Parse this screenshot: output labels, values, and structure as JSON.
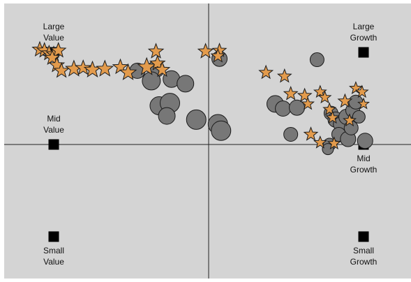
{
  "chart_data": {
    "type": "scatter",
    "title": "",
    "xlabel": "",
    "ylabel": "",
    "xlim": [
      -1,
      1
    ],
    "ylim": [
      -1,
      1
    ],
    "grid": false,
    "colors": {
      "background": "#d4d4d4",
      "axis": "#222222",
      "marker_anchor": "#000000",
      "star_fill": "#e39b4c",
      "circle_fill": "#777777",
      "outline": "#1a1a1a"
    },
    "anchors": [
      {
        "label": [
          "Large",
          "Value"
        ],
        "x": -1,
        "y": 1,
        "label_pos": "above"
      },
      {
        "label": [
          "Large",
          "Growth"
        ],
        "x": 1,
        "y": 1,
        "label_pos": "above"
      },
      {
        "label": [
          "Mid",
          "Value"
        ],
        "x": -1,
        "y": 0,
        "label_pos": "above"
      },
      {
        "label": [
          "Mid",
          "Growth"
        ],
        "x": 1,
        "y": 0,
        "label_pos": "below"
      },
      {
        "label": [
          "Small",
          "Value"
        ],
        "x": -1,
        "y": -1,
        "label_pos": "below"
      },
      {
        "label": [
          "Small",
          "Growth"
        ],
        "x": 1,
        "y": -1,
        "label_pos": "below"
      }
    ],
    "series": [
      {
        "marker": "circle",
        "points": [
          {
            "x": -0.46,
            "y": 0.8,
            "s": 11
          },
          {
            "x": -0.34,
            "y": 0.82,
            "s": 12
          },
          {
            "x": -0.37,
            "y": 0.69,
            "s": 13
          },
          {
            "x": -0.24,
            "y": 0.71,
            "s": 12
          },
          {
            "x": -0.15,
            "y": 0.66,
            "s": 12
          },
          {
            "x": -0.32,
            "y": 0.42,
            "s": 13
          },
          {
            "x": -0.25,
            "y": 0.45,
            "s": 14
          },
          {
            "x": -0.27,
            "y": 0.31,
            "s": 12
          },
          {
            "x": -0.08,
            "y": 0.27,
            "s": 14
          },
          {
            "x": 0.06,
            "y": 0.22,
            "s": 14
          },
          {
            "x": 0.08,
            "y": 0.15,
            "s": 14
          },
          {
            "x": 0.07,
            "y": 0.93,
            "s": 11
          },
          {
            "x": 0.7,
            "y": 0.92,
            "s": 10
          },
          {
            "x": 0.43,
            "y": 0.44,
            "s": 12
          },
          {
            "x": 0.48,
            "y": 0.39,
            "s": 11
          },
          {
            "x": 0.57,
            "y": 0.4,
            "s": 11
          },
          {
            "x": 0.53,
            "y": 0.11,
            "s": 10
          },
          {
            "x": 0.79,
            "y": 0.34,
            "s": 10
          },
          {
            "x": 0.82,
            "y": 0.27,
            "s": 11
          },
          {
            "x": 0.85,
            "y": 0.22,
            "s": 10
          },
          {
            "x": 0.89,
            "y": 0.3,
            "s": 11
          },
          {
            "x": 0.93,
            "y": 0.37,
            "s": 10
          },
          {
            "x": 0.95,
            "y": 0.46,
            "s": 10
          },
          {
            "x": 0.84,
            "y": 0.11,
            "s": 10
          },
          {
            "x": 0.9,
            "y": 0.06,
            "s": 11
          },
          {
            "x": 1.01,
            "y": 0.04,
            "s": 11
          },
          {
            "x": 0.78,
            "y": 0.0,
            "s": 9
          },
          {
            "x": 0.77,
            "y": -0.05,
            "s": 8
          },
          {
            "x": 0.92,
            "y": 0.18,
            "s": 10
          },
          {
            "x": 0.97,
            "y": 0.3,
            "s": 9
          }
        ]
      },
      {
        "marker": "star",
        "points": [
          {
            "x": -1.09,
            "y": 1.03,
            "s": 11
          },
          {
            "x": -1.06,
            "y": 1.02,
            "s": 11
          },
          {
            "x": -1.03,
            "y": 0.99,
            "s": 11
          },
          {
            "x": -1.0,
            "y": 0.98,
            "s": 11
          },
          {
            "x": -0.97,
            "y": 1.02,
            "s": 11
          },
          {
            "x": -1.01,
            "y": 0.94,
            "s": 11
          },
          {
            "x": -0.98,
            "y": 0.86,
            "s": 11
          },
          {
            "x": -0.95,
            "y": 0.8,
            "s": 11
          },
          {
            "x": -0.87,
            "y": 0.82,
            "s": 12
          },
          {
            "x": -0.81,
            "y": 0.83,
            "s": 11
          },
          {
            "x": -0.75,
            "y": 0.81,
            "s": 12
          },
          {
            "x": -0.67,
            "y": 0.82,
            "s": 12
          },
          {
            "x": -0.57,
            "y": 0.84,
            "s": 11
          },
          {
            "x": -0.52,
            "y": 0.78,
            "s": 12
          },
          {
            "x": -0.4,
            "y": 0.84,
            "s": 13
          },
          {
            "x": -0.33,
            "y": 0.88,
            "s": 11
          },
          {
            "x": -0.3,
            "y": 0.81,
            "s": 11
          },
          {
            "x": -0.34,
            "y": 1.01,
            "s": 11
          },
          {
            "x": -0.02,
            "y": 1.01,
            "s": 11
          },
          {
            "x": 0.07,
            "y": 1.02,
            "s": 10
          },
          {
            "x": 0.06,
            "y": 0.96,
            "s": 10
          },
          {
            "x": 0.37,
            "y": 0.78,
            "s": 10
          },
          {
            "x": 0.49,
            "y": 0.74,
            "s": 10
          },
          {
            "x": 0.53,
            "y": 0.55,
            "s": 10
          },
          {
            "x": 0.62,
            "y": 0.53,
            "s": 10
          },
          {
            "x": 0.64,
            "y": 0.44,
            "s": 9
          },
          {
            "x": 0.72,
            "y": 0.57,
            "s": 9
          },
          {
            "x": 0.75,
            "y": 0.51,
            "s": 9
          },
          {
            "x": 0.78,
            "y": 0.38,
            "s": 9
          },
          {
            "x": 0.8,
            "y": 0.29,
            "s": 9
          },
          {
            "x": 0.88,
            "y": 0.47,
            "s": 10
          },
          {
            "x": 0.95,
            "y": 0.61,
            "s": 9
          },
          {
            "x": 0.99,
            "y": 0.57,
            "s": 9
          },
          {
            "x": 1.0,
            "y": 0.44,
            "s": 8
          },
          {
            "x": 0.91,
            "y": 0.26,
            "s": 9
          },
          {
            "x": 0.66,
            "y": 0.11,
            "s": 10
          },
          {
            "x": 0.72,
            "y": 0.02,
            "s": 9
          },
          {
            "x": 0.81,
            "y": 0.01,
            "s": 9
          }
        ]
      }
    ]
  }
}
